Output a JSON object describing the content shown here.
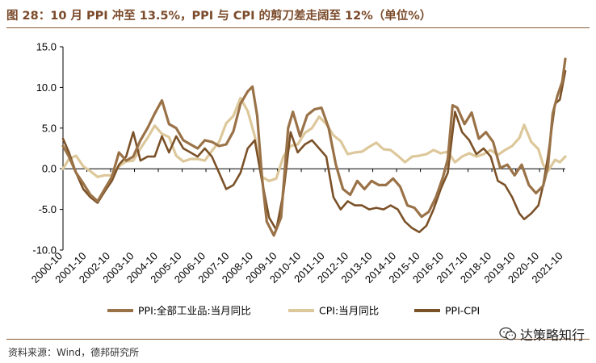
{
  "title": "图 28：10 月 PPI 冲至 13.5%，PPI 与 CPI 的剪刀差走阔至 12%（单位%）",
  "source": "资料来源：Wind，德邦研究所",
  "watermark": "达策略知行",
  "colors": {
    "ppi": "#9a7248",
    "cpi": "#ddc89b",
    "diff": "#7b5128",
    "title": "#7a4a2a"
  },
  "chart_data": {
    "type": "line",
    "title": "10 月 PPI 冲至 13.5%，PPI 与 CPI 的剪刀差走阔至 12%",
    "ylim": [
      -10,
      15
    ],
    "yticks": [
      15,
      10,
      5,
      0,
      -5,
      -10
    ],
    "ytick_labels": [
      "15.0",
      "10.0",
      "5.0",
      "0.0",
      "-5.0",
      "-10.0"
    ],
    "xlim": [
      2000.75,
      2021.83
    ],
    "xticks": [
      2000.75,
      2001.75,
      2002.75,
      2003.75,
      2004.75,
      2005.75,
      2006.75,
      2007.75,
      2008.75,
      2009.75,
      2010.75,
      2011.75,
      2012.75,
      2013.75,
      2014.75,
      2015.75,
      2016.75,
      2017.75,
      2018.75,
      2019.75,
      2020.75,
      2021.75
    ],
    "xtick_labels": [
      "2000-10",
      "2001-10",
      "2002-10",
      "2003-10",
      "2004-10",
      "2005-10",
      "2006-10",
      "2007-10",
      "2008-10",
      "2009-10",
      "2010-10",
      "2011-10",
      "2012-10",
      "2013-10",
      "2014-10",
      "2015-10",
      "2016-10",
      "2017-10",
      "2018-10",
      "2019-10",
      "2020-10",
      "2021-10"
    ],
    "series": [
      {
        "name": "PPI:全部工业品:当月同比",
        "x": [
          2000.75,
          2001.0,
          2001.3,
          2001.6,
          2001.9,
          2002.2,
          2002.5,
          2002.8,
          2003.1,
          2003.4,
          2003.7,
          2004.0,
          2004.3,
          2004.6,
          2004.9,
          2005.2,
          2005.5,
          2005.8,
          2006.1,
          2006.4,
          2006.7,
          2007.0,
          2007.3,
          2007.6,
          2007.9,
          2008.2,
          2008.5,
          2008.7,
          2008.9,
          2009.1,
          2009.3,
          2009.6,
          2009.9,
          2010.2,
          2010.4,
          2010.7,
          2011.0,
          2011.3,
          2011.6,
          2011.9,
          2012.2,
          2012.5,
          2012.8,
          2013.1,
          2013.4,
          2013.7,
          2014.0,
          2014.3,
          2014.6,
          2014.9,
          2015.2,
          2015.5,
          2015.8,
          2016.1,
          2016.4,
          2016.7,
          2016.9,
          2017.1,
          2017.3,
          2017.6,
          2017.9,
          2018.2,
          2018.5,
          2018.8,
          2019.1,
          2019.4,
          2019.7,
          2020.0,
          2020.3,
          2020.6,
          2020.9,
          2021.1,
          2021.3,
          2021.5,
          2021.7,
          2021.83
        ],
        "values": [
          2.8,
          1.5,
          -0.5,
          -1.8,
          -3.2,
          -4.0,
          -2.5,
          -1.0,
          2.0,
          1.0,
          1.5,
          3.5,
          5.0,
          6.8,
          8.4,
          5.5,
          5.0,
          3.5,
          3.0,
          2.5,
          3.5,
          3.3,
          2.8,
          3.0,
          4.6,
          8.0,
          9.5,
          10.1,
          6.5,
          -1.0,
          -6.5,
          -8.2,
          -6.0,
          5.0,
          7.0,
          4.0,
          6.6,
          7.3,
          7.5,
          5.0,
          0.5,
          -2.5,
          -3.2,
          -1.5,
          -2.5,
          -1.5,
          -2.0,
          -2.0,
          -1.2,
          -2.2,
          -4.5,
          -4.8,
          -5.9,
          -5.3,
          -3.5,
          -1.0,
          1.2,
          7.8,
          7.5,
          5.5,
          6.9,
          3.7,
          4.5,
          3.3,
          0.1,
          0.5,
          -0.8,
          0.5,
          -2.0,
          -3.0,
          -2.1,
          0.3,
          6.8,
          9.0,
          10.7,
          13.5
        ]
      },
      {
        "name": "CPI:当月同比",
        "x": [
          2000.75,
          2001.0,
          2001.3,
          2001.6,
          2001.9,
          2002.2,
          2002.5,
          2002.8,
          2003.1,
          2003.4,
          2003.7,
          2004.0,
          2004.3,
          2004.6,
          2004.9,
          2005.2,
          2005.5,
          2005.8,
          2006.1,
          2006.4,
          2006.7,
          2007.0,
          2007.3,
          2007.6,
          2007.9,
          2008.2,
          2008.5,
          2008.8,
          2009.1,
          2009.4,
          2009.7,
          2010.0,
          2010.3,
          2010.6,
          2010.9,
          2011.2,
          2011.5,
          2011.8,
          2012.1,
          2012.4,
          2012.7,
          2013.0,
          2013.3,
          2013.6,
          2013.9,
          2014.2,
          2014.5,
          2014.8,
          2015.1,
          2015.4,
          2015.7,
          2016.0,
          2016.3,
          2016.6,
          2016.9,
          2017.2,
          2017.5,
          2017.8,
          2018.1,
          2018.4,
          2018.7,
          2019.0,
          2019.3,
          2019.6,
          2019.9,
          2020.1,
          2020.4,
          2020.7,
          2020.9,
          2021.1,
          2021.4,
          2021.6,
          2021.83
        ],
        "values": [
          0.0,
          1.2,
          1.6,
          0.3,
          -0.3,
          -1.0,
          -0.8,
          -0.8,
          0.3,
          0.9,
          1.0,
          2.5,
          3.8,
          5.3,
          4.3,
          3.9,
          1.6,
          0.9,
          1.2,
          1.2,
          1.0,
          2.2,
          3.3,
          5.6,
          6.5,
          8.7,
          7.1,
          4.0,
          -1.0,
          -1.5,
          -1.2,
          1.5,
          2.8,
          3.0,
          4.4,
          5.0,
          6.4,
          5.5,
          4.1,
          3.4,
          1.8,
          2.0,
          2.1,
          2.7,
          3.2,
          2.4,
          2.3,
          1.6,
          0.8,
          1.5,
          1.6,
          1.8,
          2.3,
          1.9,
          2.1,
          0.8,
          1.5,
          1.9,
          1.5,
          1.8,
          2.3,
          1.7,
          2.3,
          2.8,
          3.8,
          5.4,
          3.3,
          2.4,
          0.5,
          -0.3,
          1.1,
          0.8,
          1.5
        ]
      },
      {
        "name": "PPI-CPI",
        "x": [
          2000.75,
          2001.0,
          2001.3,
          2001.6,
          2001.9,
          2002.2,
          2002.5,
          2002.8,
          2003.1,
          2003.4,
          2003.7,
          2004.0,
          2004.3,
          2004.6,
          2004.9,
          2005.2,
          2005.5,
          2005.8,
          2006.1,
          2006.4,
          2006.7,
          2007.0,
          2007.3,
          2007.6,
          2007.9,
          2008.2,
          2008.5,
          2008.8,
          2009.1,
          2009.4,
          2009.7,
          2010.0,
          2010.3,
          2010.6,
          2010.9,
          2011.2,
          2011.5,
          2011.8,
          2012.1,
          2012.4,
          2012.7,
          2013.0,
          2013.3,
          2013.6,
          2013.9,
          2014.2,
          2014.5,
          2014.8,
          2015.1,
          2015.4,
          2015.7,
          2016.0,
          2016.3,
          2016.6,
          2016.9,
          2017.2,
          2017.5,
          2017.8,
          2018.1,
          2018.4,
          2018.7,
          2019.0,
          2019.3,
          2019.6,
          2019.9,
          2020.1,
          2020.4,
          2020.7,
          2020.9,
          2021.1,
          2021.4,
          2021.6,
          2021.83
        ],
        "values": [
          3.7,
          2.0,
          -0.5,
          -2.5,
          -3.5,
          -4.2,
          -2.8,
          -1.5,
          0.5,
          1.5,
          4.5,
          1.0,
          1.5,
          1.5,
          4.0,
          2.0,
          4.0,
          2.5,
          2.0,
          1.5,
          2.5,
          1.5,
          -0.5,
          -2.5,
          -2.0,
          -0.5,
          2.5,
          3.5,
          -1.5,
          -6.0,
          -7.5,
          -3.0,
          4.5,
          2.0,
          3.0,
          3.5,
          2.5,
          1.5,
          -3.5,
          -5.0,
          -4.0,
          -4.5,
          -4.5,
          -5.0,
          -4.8,
          -5.0,
          -4.5,
          -5.0,
          -6.5,
          -7.3,
          -7.8,
          -7.0,
          -5.0,
          -2.5,
          -0.5,
          7.0,
          4.5,
          3.5,
          1.8,
          2.5,
          1.5,
          -1.5,
          -2.0,
          -3.5,
          -5.5,
          -6.2,
          -5.5,
          -4.5,
          -2.0,
          1.5,
          8.0,
          8.5,
          12.0
        ]
      }
    ]
  }
}
